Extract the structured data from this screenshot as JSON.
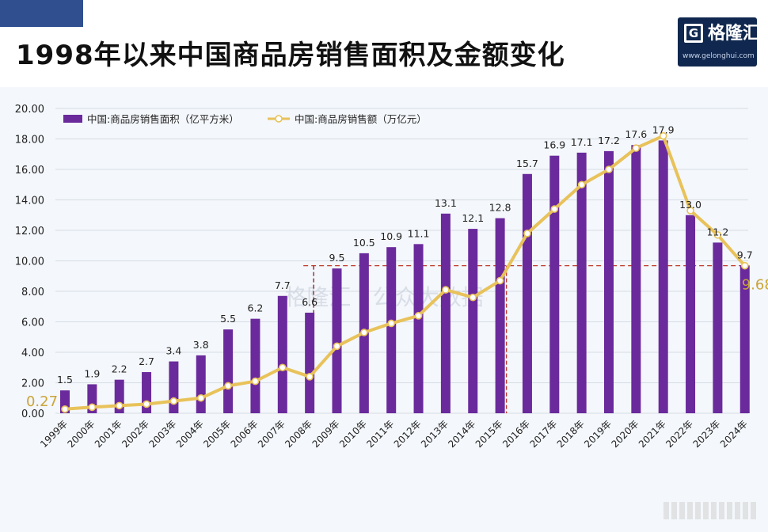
{
  "header": {
    "title": "1998年以来中国商品房销售面积及金额变化",
    "logo_name": "格隆汇",
    "logo_url": "www.gelonghui.com"
  },
  "chart_data": {
    "type": "bar",
    "title": "1998年以来中国商品房销售面积及金额变化",
    "categories": [
      "1999年",
      "2000年",
      "2001年",
      "2002年",
      "2003年",
      "2004年",
      "2005年",
      "2006年",
      "2007年",
      "2008年",
      "2009年",
      "2010年",
      "2011年",
      "2012年",
      "2013年",
      "2014年",
      "2015年",
      "2016年",
      "2017年",
      "2018年",
      "2019年",
      "2020年",
      "2021年",
      "2022年",
      "2023年",
      "2024年"
    ],
    "series": [
      {
        "name": "中国:商品房销售面积（亿平方米）",
        "type": "bar",
        "color": "#6a2a9c",
        "values": [
          1.5,
          1.9,
          2.2,
          2.7,
          3.4,
          3.8,
          5.5,
          6.2,
          7.7,
          6.6,
          9.5,
          10.5,
          10.9,
          11.1,
          13.1,
          12.1,
          12.8,
          15.7,
          16.9,
          17.1,
          17.2,
          17.6,
          17.9,
          13.0,
          11.2,
          9.7
        ],
        "labels": [
          "1.5",
          "1.9",
          "2.2",
          "2.7",
          "3.4",
          "3.8",
          "5.5",
          "6.2",
          "7.7",
          "6.6",
          "9.5",
          "10.5",
          "10.9",
          "11.1",
          "13.1",
          "12.1",
          "12.8",
          "15.7",
          "16.9",
          "17.1",
          "17.2",
          "17.6",
          "17.9",
          "13.0",
          "11.2",
          "9.7"
        ]
      },
      {
        "name": "中国:商品房销售额（万亿元）",
        "type": "line",
        "color": "#e8c25a",
        "values": [
          0.27,
          0.4,
          0.5,
          0.6,
          0.8,
          1.0,
          1.8,
          2.1,
          3.0,
          2.4,
          4.4,
          5.3,
          5.9,
          6.4,
          8.1,
          7.6,
          8.7,
          11.8,
          13.4,
          15.0,
          16.0,
          17.4,
          18.2,
          13.3,
          11.7,
          9.68
        ]
      }
    ],
    "annotations": [
      {
        "text": "0.27",
        "series": 1,
        "index": 0,
        "color": "#c9a53a"
      },
      {
        "text": "9.68",
        "series": 1,
        "index": 25,
        "color": "#c9a53a"
      }
    ],
    "reference_line": {
      "value": 9.68,
      "from_index": 9,
      "color": "#c0392b",
      "style": "dashed"
    },
    "vertical_markers": [
      {
        "index": 9,
        "color": "#7a1a2a"
      },
      {
        "index": 16,
        "color": "#c0392b"
      }
    ],
    "watermark": "格隆汇 | 公众大数据",
    "y_ticks": [
      "0.00",
      "2.00",
      "4.00",
      "6.00",
      "8.00",
      "10.00",
      "12.00",
      "14.00",
      "16.00",
      "18.00",
      "20.00"
    ],
    "ylim": [
      0,
      20
    ],
    "xlabel": "",
    "ylabel": "",
    "grid": true,
    "legend_position": "top-left"
  }
}
